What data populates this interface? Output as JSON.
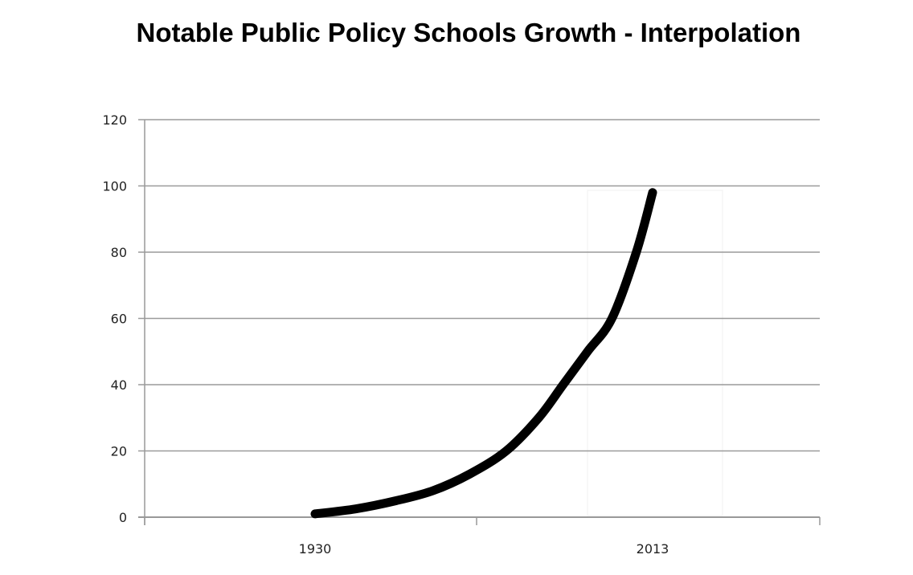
{
  "chart_data": {
    "type": "line",
    "title": "Notable Public Policy Schools Growth - Interpolation",
    "xlabel": "",
    "ylabel": "",
    "categories": [
      "1930",
      "2013"
    ],
    "ylim": [
      0,
      120
    ],
    "yticks": [
      0,
      20,
      40,
      60,
      80,
      100,
      120
    ],
    "grid": true,
    "legend": "none",
    "series": [
      {
        "name": "Interpolation",
        "color": "#000000",
        "x": [
          1930,
          1940,
          1950,
          1959,
          1968,
          1977,
          1985,
          1991,
          1997,
          2003,
          2009,
          2013
        ],
        "values": [
          1,
          2.5,
          5,
          8,
          13,
          20,
          30,
          40,
          50,
          60,
          80,
          98
        ]
      }
    ]
  }
}
